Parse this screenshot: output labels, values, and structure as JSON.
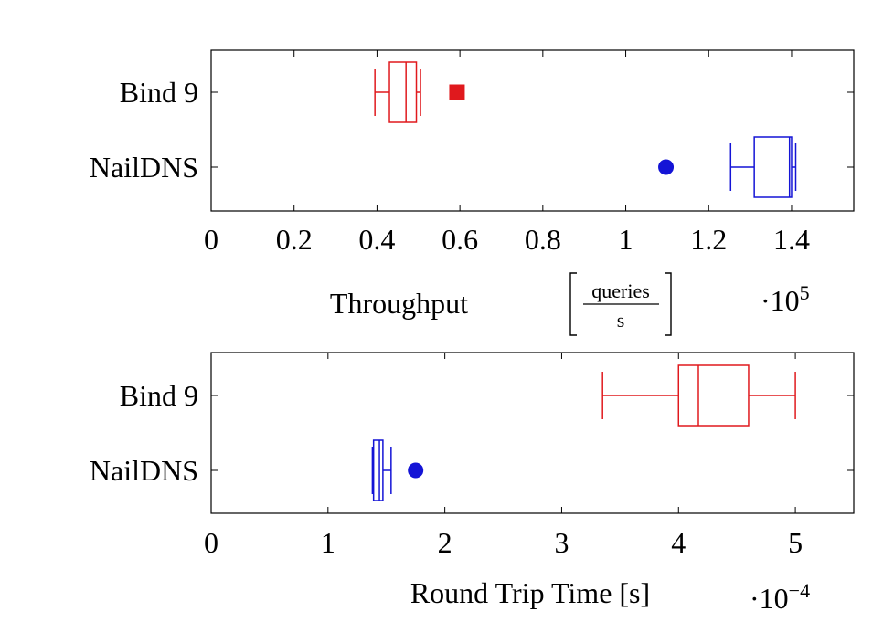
{
  "chart_data": [
    {
      "type": "boxplot",
      "xlabel_main": "Throughput",
      "xlabel_unit_num": "queries",
      "xlabel_unit_den": "s",
      "multiplier_base": "·10",
      "multiplier_exp": "5",
      "xlim": [
        0,
        1.55
      ],
      "xticks": [
        0,
        0.2,
        0.4,
        0.6,
        0.8,
        1,
        1.2,
        1.4
      ],
      "xtick_labels": [
        "0",
        "0.2",
        "0.4",
        "0.6",
        "0.8",
        "1",
        "1.2",
        "1.4"
      ],
      "categories": [
        "Bind 9",
        "NailDNS"
      ],
      "boxes": [
        {
          "category": "Bind 9",
          "color": "#e0191d",
          "whisker_low": 0.395,
          "q1": 0.43,
          "median": 0.47,
          "q3": 0.495,
          "whisker_high": 0.505,
          "outliers": [
            0.593
          ],
          "outlier_marker": "square"
        },
        {
          "category": "NailDNS",
          "color": "#1414d6",
          "whisker_low": 1.253,
          "q1": 1.31,
          "median": 1.395,
          "q3": 1.4,
          "whisker_high": 1.41,
          "outliers": [
            1.097
          ],
          "outlier_marker": "circle"
        }
      ]
    },
    {
      "type": "boxplot",
      "xlabel_main": "Round Trip Time [s]",
      "multiplier_base": "·10",
      "multiplier_exp": "−4",
      "xlim": [
        0,
        5.5
      ],
      "xticks": [
        0,
        1,
        2,
        3,
        4,
        5
      ],
      "xtick_labels": [
        "0",
        "1",
        "2",
        "3",
        "4",
        "5"
      ],
      "categories": [
        "Bind 9",
        "NailDNS"
      ],
      "boxes": [
        {
          "category": "Bind 9",
          "color": "#e0191d",
          "whisker_low": 3.35,
          "q1": 4.0,
          "median": 4.17,
          "q3": 4.6,
          "whisker_high": 5.0,
          "outliers": [],
          "outlier_marker": "square"
        },
        {
          "category": "NailDNS",
          "color": "#1414d6",
          "whisker_low": 1.38,
          "q1": 1.39,
          "median": 1.44,
          "q3": 1.47,
          "whisker_high": 1.54,
          "outliers": [
            1.75
          ],
          "outlier_marker": "circle"
        }
      ]
    }
  ]
}
